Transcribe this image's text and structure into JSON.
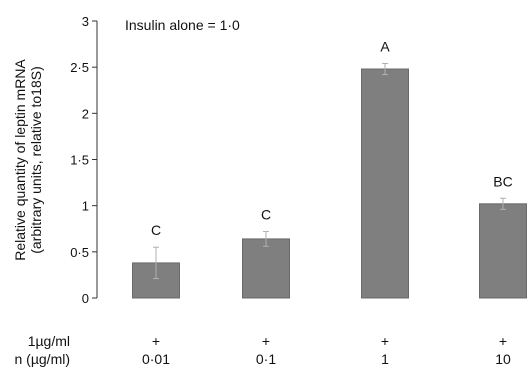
{
  "chart_data": {
    "type": "bar",
    "annotation": "Insulin alone = 1·0",
    "ylabel_lines": [
      "Relative quantity of leptin mRNA",
      "(arbitrary units, relative to18S)"
    ],
    "ylim": [
      0,
      3
    ],
    "yticks": [
      {
        "value": 0,
        "label": "0"
      },
      {
        "value": 0.5,
        "label": "0·5"
      },
      {
        "value": 1,
        "label": "1"
      },
      {
        "value": 1.5,
        "label": "1·5"
      },
      {
        "value": 2,
        "label": "2"
      },
      {
        "value": 2.5,
        "label": "2·5"
      },
      {
        "value": 3,
        "label": "3"
      }
    ],
    "grid": false,
    "bar_color": "#7f7f7f",
    "bars": [
      {
        "category": "0·01",
        "value": 0.38,
        "error": 0.17,
        "group": "C",
        "insulin": "+"
      },
      {
        "category": "0·1",
        "value": 0.64,
        "error": 0.08,
        "group": "C",
        "insulin": "+"
      },
      {
        "category": "1",
        "value": 2.48,
        "error": 0.06,
        "group": "A",
        "insulin": "+"
      },
      {
        "category": "10",
        "value": 1.02,
        "error": 0.06,
        "group": "BC",
        "insulin": "+"
      }
    ],
    "row_labels": [
      "1µg/ml",
      "n (µg/ml)"
    ]
  }
}
